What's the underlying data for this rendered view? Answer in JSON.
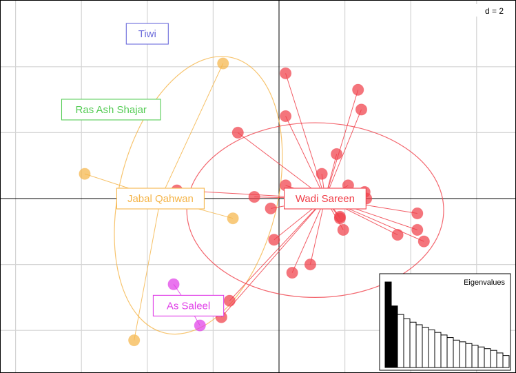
{
  "chart_data": {
    "type": "scatter",
    "title": "",
    "xlabel": "",
    "ylabel": "",
    "grid": true,
    "grid_step": 2,
    "scale_label": "d = 2",
    "xlim": [
      -8.5,
      7.0
    ],
    "ylim": [
      -5.5,
      5.9
    ],
    "groups": [
      {
        "name": "Tiwi",
        "color": "#6b6bdb",
        "points": [],
        "label_pos": [
          -4.0,
          5.0
        ],
        "ellipse": null
      },
      {
        "name": "Ras Ash Shajar",
        "color": "#55cc55",
        "points": [],
        "label_pos": [
          -5.1,
          2.7
        ],
        "ellipse": null
      },
      {
        "name": "Jabal Qahwan",
        "color": "#f5b54a",
        "points": [
          [
            -1.7,
            4.1
          ],
          [
            -5.9,
            0.75
          ],
          [
            -1.4,
            -0.6
          ],
          [
            -4.4,
            -4.3
          ]
        ],
        "label_pos": [
          -3.6,
          0.0
        ],
        "ellipse": {
          "cx": -2.45,
          "cy": 0.1,
          "rx": 4.3,
          "ry": 2.4,
          "angle": 76
        }
      },
      {
        "name": "Wadi Sareen",
        "color": "#f0404a",
        "points": [
          [
            0.2,
            3.8
          ],
          [
            2.4,
            3.3
          ],
          [
            2.5,
            2.7
          ],
          [
            0.2,
            2.5
          ],
          [
            -1.25,
            2.0
          ],
          [
            1.75,
            1.35
          ],
          [
            1.3,
            0.75
          ],
          [
            -3.1,
            0.25
          ],
          [
            -0.75,
            0.05
          ],
          [
            0.2,
            0.4
          ],
          [
            2.1,
            0.4
          ],
          [
            2.6,
            0.2
          ],
          [
            2.65,
            0.0
          ],
          [
            -0.25,
            -0.3
          ],
          [
            1.85,
            -0.55
          ],
          [
            1.85,
            -0.6
          ],
          [
            4.2,
            -0.45
          ],
          [
            1.95,
            -0.95
          ],
          [
            4.2,
            -0.95
          ],
          [
            3.6,
            -1.1
          ],
          [
            4.4,
            -1.3
          ],
          [
            -0.15,
            -1.25
          ],
          [
            0.95,
            -2.0
          ],
          [
            0.4,
            -2.25
          ],
          [
            -1.5,
            -3.1
          ],
          [
            -1.75,
            -3.6
          ]
        ],
        "label_pos": [
          1.4,
          0.0
        ],
        "ellipse": {
          "cx": 1.1,
          "cy": -0.35,
          "rx": 3.9,
          "ry": 2.65,
          "angle": 0
        }
      },
      {
        "name": "As Saleel",
        "color": "#e040e8",
        "points": [
          [
            -3.2,
            -2.6
          ],
          [
            -2.4,
            -3.85
          ]
        ],
        "label_pos": [
          -2.75,
          -3.25
        ],
        "ellipse": null
      }
    ],
    "eigenvalues": {
      "title": "Eigenvalues",
      "values": [
        1.0,
        0.72,
        0.62,
        0.57,
        0.53,
        0.5,
        0.47,
        0.44,
        0.41,
        0.38,
        0.35,
        0.32,
        0.3,
        0.28,
        0.26,
        0.24,
        0.22,
        0.2,
        0.17,
        0.14
      ],
      "highlighted": 2
    }
  }
}
